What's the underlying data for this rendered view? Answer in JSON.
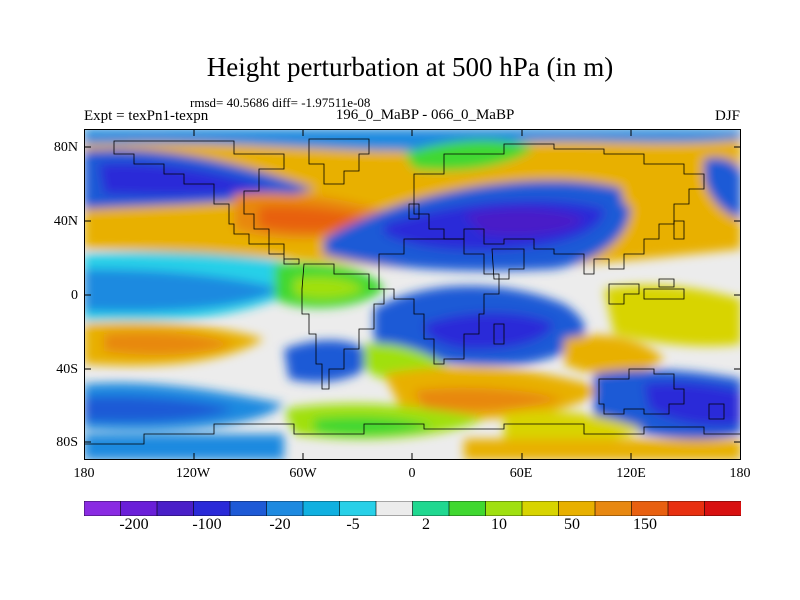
{
  "title": "Height perturbation at 500 hPa (in m)",
  "stats_line": "rmsd= 40.5686 diff= -1.97511e-08",
  "left_label": "Expt = texPn1-texpn",
  "center_label": "196_0_MaBP - 066_0_MaBP",
  "right_label": "DJF",
  "y_axis_ticks": [
    "80N",
    "40N",
    "0",
    "40S",
    "80S"
  ],
  "x_axis_ticks": [
    "180",
    "120W",
    "60W",
    "0",
    "60E",
    "120E",
    "180"
  ],
  "colorbar": {
    "colors": [
      "#8a2be2",
      "#6a1fd8",
      "#4a1fc8",
      "#2a2ad8",
      "#1e5ad6",
      "#1e8ae0",
      "#10b0e0",
      "#28d0e8",
      "#ececec",
      "#20d890",
      "#40d830",
      "#a0e010",
      "#d8d400",
      "#e8b000",
      "#e88810",
      "#e86010",
      "#e83010",
      "#d81010"
    ],
    "labels": [
      "-200",
      "-100",
      "-20",
      "-5",
      "2",
      "10",
      "50",
      "150"
    ]
  },
  "chart_data": {
    "type": "heatmap",
    "title": "Height perturbation at 500 hPa (in m)",
    "subtitle": "196_0_MaBP - 066_0_MaBP",
    "season": "DJF",
    "xlim": [
      -180,
      180
    ],
    "ylim": [
      -90,
      90
    ],
    "x_ticks": [
      -180,
      -120,
      -60,
      0,
      60,
      120,
      180
    ],
    "y_ticks": [
      80,
      40,
      0,
      -40,
      -80
    ],
    "rmsd": 40.5686,
    "diff": -1.97511e-08,
    "levels": [
      -250,
      -200,
      -150,
      -100,
      -50,
      -20,
      -10,
      -5,
      -2,
      2,
      5,
      10,
      20,
      50,
      100,
      150,
      200
    ],
    "anomaly_centers": [
      {
        "lon": -150,
        "lat": 62,
        "value": -90
      },
      {
        "lon": -90,
        "lat": 45,
        "value": 120
      },
      {
        "lon": -175,
        "lat": 40,
        "value": 60
      },
      {
        "lon": 80,
        "lat": 45,
        "value": -150
      },
      {
        "lon": 45,
        "lat": 80,
        "value": 60
      },
      {
        "lon": 130,
        "lat": 55,
        "value": 100
      },
      {
        "lon": 170,
        "lat": 65,
        "value": -60
      },
      {
        "lon": -150,
        "lat": 0,
        "value": -25
      },
      {
        "lon": -60,
        "lat": 0,
        "value": 8
      },
      {
        "lon": 60,
        "lat": -20,
        "value": -40
      },
      {
        "lon": 150,
        "lat": -5,
        "value": 15
      },
      {
        "lon": -130,
        "lat": -38,
        "value": 35
      },
      {
        "lon": -40,
        "lat": -40,
        "value": -50
      },
      {
        "lon": 20,
        "lat": -30,
        "value": 30
      },
      {
        "lon": 110,
        "lat": -38,
        "value": 45
      },
      {
        "lon": 30,
        "lat": -60,
        "value": 70
      },
      {
        "lon": -150,
        "lat": -75,
        "value": -45
      },
      {
        "lon": 150,
        "lat": -70,
        "value": -90
      }
    ]
  }
}
